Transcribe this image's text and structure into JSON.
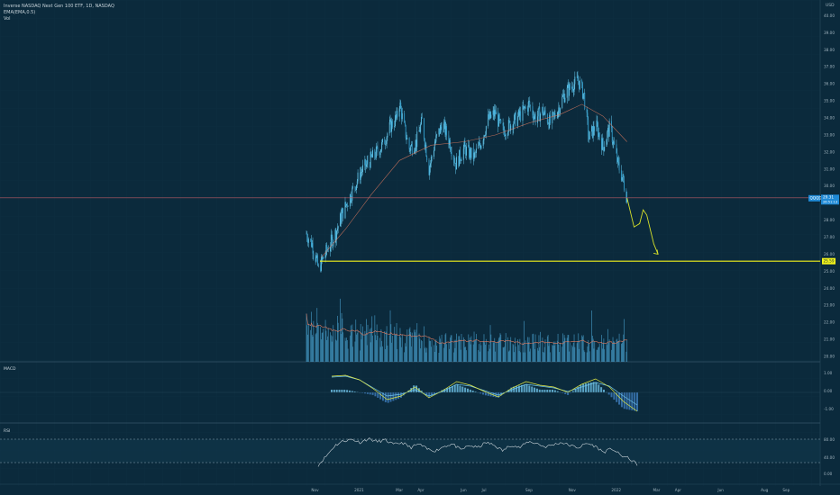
{
  "header": {
    "title": "Inverse NASDAQ Next Gen 100 ETF, 1D, NASDAQ",
    "indicator": "EMA(EMA,0.5)",
    "vol_label": "Vol"
  },
  "panes": {
    "macd_label": "MACD",
    "rsi_label": "RSI"
  },
  "price_axis": {
    "currency": "USD",
    "ticks": [
      "40.00",
      "39.00",
      "38.00",
      "37.00",
      "36.00",
      "35.00",
      "34.00",
      "33.00",
      "32.00",
      "31.00",
      "30.00",
      "29.00",
      "28.00",
      "27.00",
      "26.00",
      "25.00",
      "24.00",
      "23.00",
      "22.00",
      "21.00",
      "20.00"
    ]
  },
  "current_price": {
    "symbol": "QQQD",
    "price": "29.31",
    "timer": "26:51:13"
  },
  "support_label": "25.59",
  "macd_axis": [
    "1.00",
    "0.00",
    "-1.00"
  ],
  "rsi_axis": [
    "80.00",
    "40.00",
    "0.00"
  ],
  "time_axis": [
    "Nov",
    "2021",
    "Mar",
    "Apr",
    "Jun",
    "Jul",
    "Sep",
    "Nov",
    "2022",
    "Mar",
    "Apr",
    "Jun",
    "Aug",
    "Sep"
  ],
  "colors": {
    "background": "#0b2a3c",
    "candle": "#62c4e8",
    "ma": "#e07a5f",
    "support": "#f2f21a",
    "projection": "#d6e02a",
    "volume": "#3f8fb8",
    "macd_line": "#e3ea45",
    "signal_line": "#6fc3e8",
    "rsi_line": "#c9d3d9"
  },
  "chart_data": {
    "type": "candlestick",
    "title": "Inverse NASDAQ Next Gen 100 ETF, 1D, NASDAQ",
    "ylim": [
      20,
      40.5
    ],
    "support_level": 25.59,
    "current_price": 29.31,
    "price_path": [
      [
        "2020-10-20",
        27.2
      ],
      [
        "2020-10-28",
        26.6
      ],
      [
        "2020-11-03",
        25.7
      ],
      [
        "2020-11-06",
        25.1
      ],
      [
        "2020-11-12",
        25.7
      ],
      [
        "2020-11-20",
        26.4
      ],
      [
        "2020-12-01",
        27.3
      ],
      [
        "2020-12-10",
        28.4
      ],
      [
        "2020-12-22",
        29.5
      ],
      [
        "2021-01-05",
        30.8
      ],
      [
        "2021-01-20",
        31.6
      ],
      [
        "2021-02-05",
        32.4
      ],
      [
        "2021-02-16",
        33.5
      ],
      [
        "2021-02-25",
        34.0
      ],
      [
        "2021-03-01",
        34.9
      ],
      [
        "2021-03-08",
        33.4
      ],
      [
        "2021-03-15",
        32.2
      ],
      [
        "2021-03-25",
        32.6
      ],
      [
        "2021-04-02",
        33.8
      ],
      [
        "2021-04-12",
        31.0
      ],
      [
        "2021-04-20",
        32.5
      ],
      [
        "2021-05-01",
        33.7
      ],
      [
        "2021-05-12",
        32.5
      ],
      [
        "2021-05-20",
        31.3
      ],
      [
        "2021-06-01",
        32.2
      ],
      [
        "2021-06-15",
        31.7
      ],
      [
        "2021-06-25",
        32.6
      ],
      [
        "2021-07-05",
        33.9
      ],
      [
        "2021-07-15",
        34.3
      ],
      [
        "2021-07-25",
        33.2
      ],
      [
        "2021-08-05",
        33.6
      ],
      [
        "2021-08-20",
        34.2
      ],
      [
        "2021-09-01",
        34.8
      ],
      [
        "2021-09-10",
        34.0
      ],
      [
        "2021-09-20",
        34.4
      ],
      [
        "2021-10-01",
        33.7
      ],
      [
        "2021-10-10",
        34.3
      ],
      [
        "2021-10-20",
        35.3
      ],
      [
        "2021-11-01",
        35.9
      ],
      [
        "2021-11-10",
        36.2
      ],
      [
        "2021-11-18",
        35.3
      ],
      [
        "2021-11-25",
        32.8
      ],
      [
        "2021-12-05",
        33.6
      ],
      [
        "2021-12-15",
        32.3
      ],
      [
        "2021-12-25",
        33.5
      ],
      [
        "2022-01-05",
        31.3
      ],
      [
        "2022-01-12",
        30.4
      ],
      [
        "2022-01-18",
        29.31
      ]
    ],
    "ema_path": [
      [
        "2020-11-10",
        25.8
      ],
      [
        "2020-12-15",
        27.5
      ],
      [
        "2021-01-20",
        29.5
      ],
      [
        "2021-03-01",
        31.5
      ],
      [
        "2021-04-15",
        32.4
      ],
      [
        "2021-06-01",
        32.6
      ],
      [
        "2021-07-15",
        33.0
      ],
      [
        "2021-09-01",
        33.7
      ],
      [
        "2021-10-15",
        34.2
      ],
      [
        "2021-11-15",
        34.8
      ],
      [
        "2021-12-15",
        34.1
      ],
      [
        "2022-01-18",
        32.6
      ]
    ],
    "projection_path": [
      [
        "2022-01-18",
        29.31
      ],
      [
        "2022-01-28",
        27.6
      ],
      [
        "2022-02-05",
        27.8
      ],
      [
        "2022-02-10",
        28.6
      ],
      [
        "2022-02-15",
        28.3
      ],
      [
        "2022-02-25",
        26.6
      ],
      [
        "2022-03-03",
        26.0
      ]
    ],
    "macd": {
      "ylim": [
        -1.3,
        1.3
      ],
      "macd_line": [
        0.9,
        0.95,
        0.7,
        0.2,
        -0.4,
        -0.2,
        0.3,
        -0.3,
        0.1,
        0.6,
        0.4,
        0.05,
        -0.25,
        0.25,
        0.6,
        0.4,
        0.3,
        0.0,
        0.45,
        0.75,
        0.3,
        -0.5,
        -1.05
      ],
      "signal_line": [
        0.85,
        0.9,
        0.7,
        0.25,
        -0.2,
        -0.1,
        0.15,
        -0.2,
        0.05,
        0.45,
        0.35,
        0.1,
        -0.15,
        0.15,
        0.45,
        0.35,
        0.25,
        0.05,
        0.3,
        0.55,
        0.35,
        -0.2,
        -0.7
      ]
    },
    "rsi": {
      "ylim": [
        0,
        100
      ],
      "values": [
        10,
        35,
        62,
        74,
        78,
        70,
        80,
        72,
        76,
        64,
        70,
        56,
        66,
        52,
        48,
        60,
        66,
        50,
        62,
        56,
        70,
        62,
        48,
        64,
        56,
        72,
        68,
        58,
        64,
        70,
        62,
        56,
        68,
        60,
        44,
        54,
        36,
        28,
        12
      ]
    }
  }
}
